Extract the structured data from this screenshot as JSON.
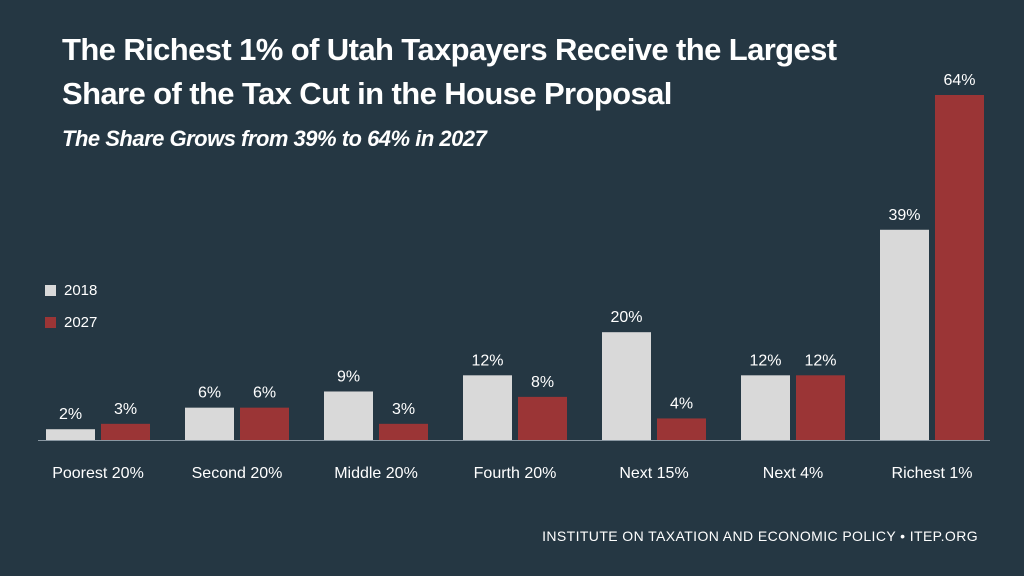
{
  "chart_data": {
    "type": "bar",
    "title_line1": "The Richest 1% of Utah Taxpayers Receive the Largest",
    "title_line2": "Share of the Tax Cut in the House Proposal",
    "subtitle": "The Share Grows from 39% to 64% in 2027",
    "categories": [
      "Poorest 20%",
      "Second 20%",
      "Middle 20%",
      "Fourth 20%",
      "Next 15%",
      "Next 4%",
      "Richest 1%"
    ],
    "series": [
      {
        "name": "2018",
        "color": "#d9d9d9",
        "values": [
          2,
          6,
          9,
          12,
          20,
          12,
          39
        ],
        "labels": [
          "2%",
          "6%",
          "9%",
          "12%",
          "20%",
          "12%",
          "39%"
        ]
      },
      {
        "name": "2027",
        "color": "#9b3536",
        "values": [
          3,
          6,
          3,
          8,
          4,
          12,
          64
        ],
        "labels": [
          "3%",
          "6%",
          "3%",
          "8%",
          "4%",
          "12%",
          "64%"
        ]
      }
    ],
    "xlabel": "",
    "ylabel": "",
    "ylim": [
      0,
      64
    ],
    "legend_position": "left"
  },
  "footer": "INSTITUTE ON TAXATION AND ECONOMIC POLICY • ITEP.ORG"
}
